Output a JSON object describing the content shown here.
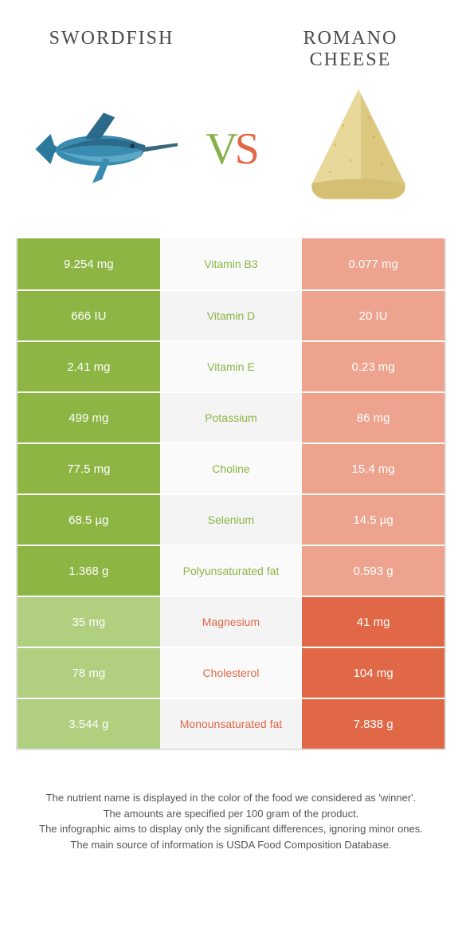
{
  "colors": {
    "left_highlight": "#8cb544",
    "left_muted": "#b0cf7f",
    "right_highlight": "#e06847",
    "right_muted": "#eda38e",
    "mid_bg_light": "#fafafa",
    "mid_bg_alt": "#f4f4f4",
    "text_green": "#8cb544",
    "text_orange": "#e06847"
  },
  "foods": {
    "left": "Swordfish",
    "right": "Romano cheese"
  },
  "vs": {
    "v": "V",
    "s": "S"
  },
  "rows": [
    {
      "nutrient": "Vitamin B3",
      "left": "9.254 mg",
      "right": "0.077 mg",
      "winner": "left"
    },
    {
      "nutrient": "Vitamin D",
      "left": "666 IU",
      "right": "20 IU",
      "winner": "left"
    },
    {
      "nutrient": "Vitamin E",
      "left": "2.41 mg",
      "right": "0.23 mg",
      "winner": "left"
    },
    {
      "nutrient": "Potassium",
      "left": "499 mg",
      "right": "86 mg",
      "winner": "left"
    },
    {
      "nutrient": "Choline",
      "left": "77.5 mg",
      "right": "15.4 mg",
      "winner": "left"
    },
    {
      "nutrient": "Selenium",
      "left": "68.5 µg",
      "right": "14.5 µg",
      "winner": "left"
    },
    {
      "nutrient": "Polyunsaturated fat",
      "left": "1.368 g",
      "right": "0.593 g",
      "winner": "left"
    },
    {
      "nutrient": "Magnesium",
      "left": "35 mg",
      "right": "41 mg",
      "winner": "right"
    },
    {
      "nutrient": "Cholesterol",
      "left": "78 mg",
      "right": "104 mg",
      "winner": "right"
    },
    {
      "nutrient": "Monounsaturated fat",
      "left": "3.544 g",
      "right": "7.838 g",
      "winner": "right"
    }
  ],
  "footer": {
    "line1": "The nutrient name is displayed in the color of the food we considered as 'winner'.",
    "line2": "The amounts are specified per 100 gram of the product.",
    "line3": "The infographic aims to display only the significant differences, ignoring minor ones.",
    "line4": "The main source of information is USDA Food Composition Database."
  }
}
